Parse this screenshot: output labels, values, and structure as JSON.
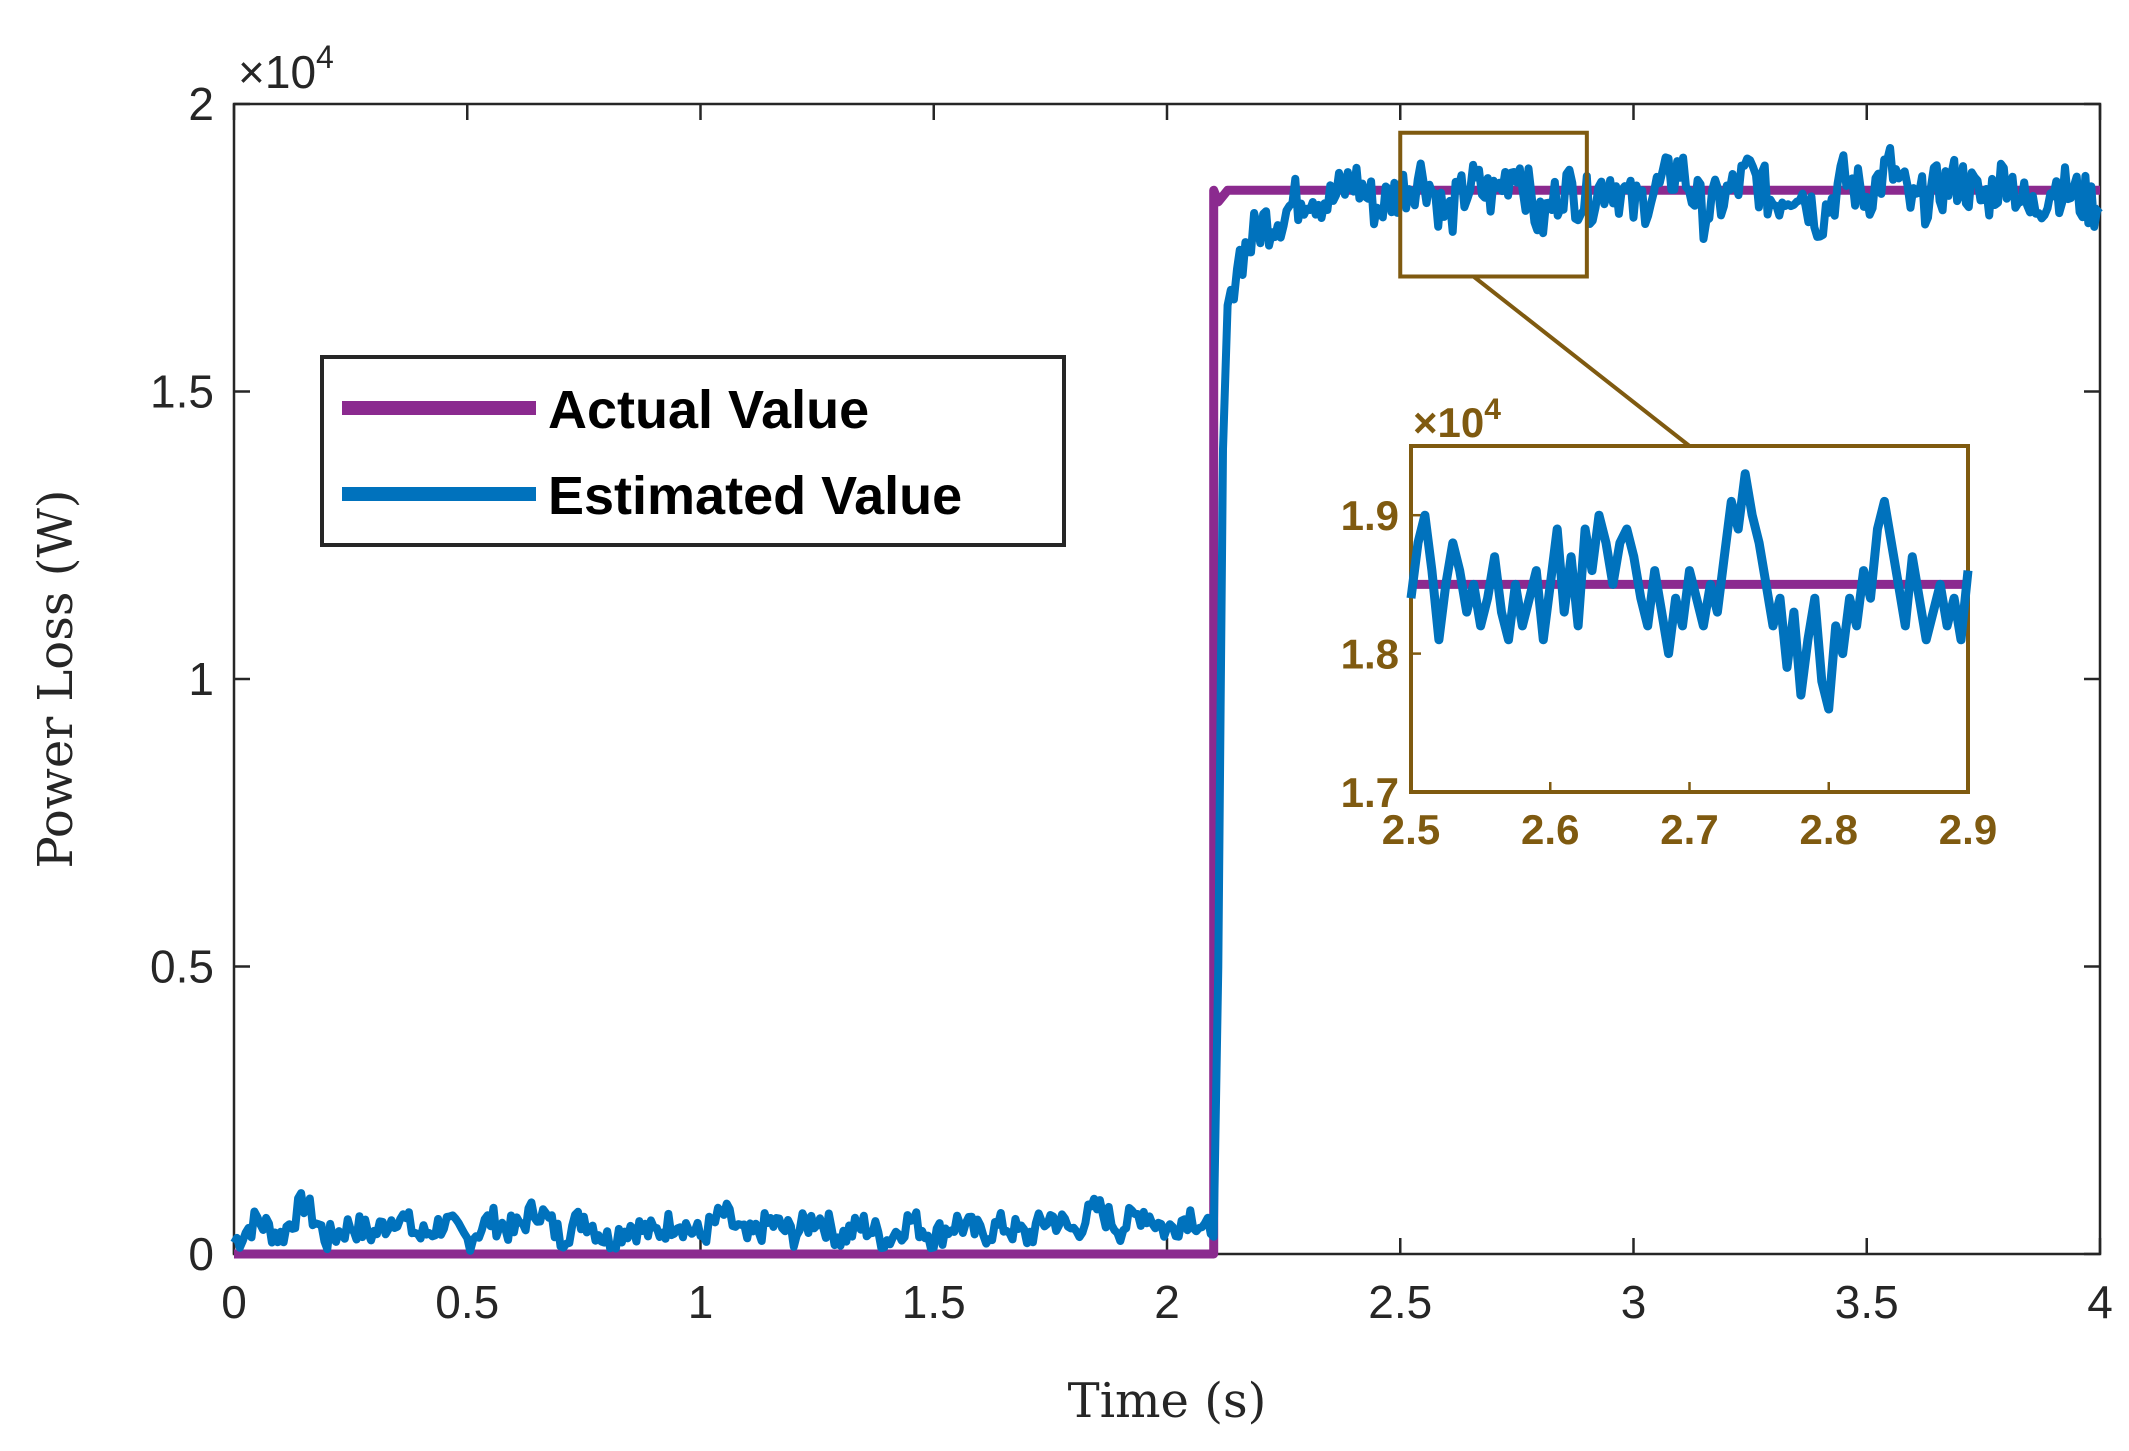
{
  "colors": {
    "actual": "#8B2A8F",
    "estimated": "#0072BD",
    "zoom": "#7F5A10",
    "axis": "#262626"
  },
  "chart_data": [
    {
      "type": "line",
      "title": "",
      "xlabel": "Time (s)",
      "ylabel": "Power Loss (W)",
      "xlim": [
        0,
        4
      ],
      "ylim": [
        0,
        20000
      ],
      "x_ticks": [
        0,
        0.5,
        1,
        1.5,
        2,
        2.5,
        3,
        3.5,
        4
      ],
      "x_tick_labels": [
        "0",
        "0.5",
        "1",
        "1.5",
        "2",
        "2.5",
        "3",
        "3.5",
        "4"
      ],
      "y_ticks": [
        0,
        5000,
        10000,
        15000,
        20000
      ],
      "y_tick_labels": [
        "0",
        "0.5",
        "1",
        "1.5",
        "2"
      ],
      "y_exponent_label": "×10",
      "y_exponent_power": "4",
      "grid": false,
      "legend": {
        "position": "upper-left",
        "entries": [
          "Actual Value",
          "Estimated Value"
        ]
      },
      "series": [
        {
          "name": "Actual Value",
          "x": [
            0,
            2.1,
            2.1,
            2.11,
            2.13,
            4
          ],
          "values": [
            0,
            0,
            18500,
            18300,
            18500,
            18500
          ]
        },
        {
          "name": "Estimated Value",
          "description_of_shape": "noisy estimate tracking actual value",
          "x": [
            0,
            0.05,
            0.1,
            0.15,
            0.2,
            0.25,
            0.3,
            0.35,
            0.4,
            0.45,
            0.5,
            0.55,
            0.6,
            0.65,
            0.7,
            0.75,
            0.8,
            0.85,
            0.9,
            0.95,
            1.0,
            1.05,
            1.1,
            1.15,
            1.2,
            1.25,
            1.3,
            1.35,
            1.4,
            1.45,
            1.5,
            1.55,
            1.6,
            1.65,
            1.7,
            1.75,
            1.8,
            1.85,
            1.9,
            1.95,
            2.0,
            2.05,
            2.1,
            2.11,
            2.12,
            2.13,
            2.15,
            2.18,
            2.2,
            2.25,
            2.3,
            2.35,
            2.4,
            2.45,
            2.5,
            2.55,
            2.6,
            2.65,
            2.7,
            2.75,
            2.8,
            2.85,
            2.9,
            2.95,
            3.0,
            3.05,
            3.1,
            3.15,
            3.2,
            3.25,
            3.3,
            3.35,
            3.4,
            3.45,
            3.5,
            3.55,
            3.6,
            3.65,
            3.7,
            3.75,
            3.8,
            3.85,
            3.9,
            3.95,
            4.0
          ],
          "values": [
            200,
            600,
            300,
            900,
            250,
            500,
            350,
            700,
            300,
            550,
            250,
            600,
            400,
            800,
            300,
            650,
            250,
            500,
            350,
            600,
            300,
            700,
            250,
            550,
            350,
            650,
            300,
            500,
            250,
            600,
            300,
            550,
            350,
            500,
            300,
            650,
            400,
            800,
            450,
            750,
            400,
            700,
            300,
            5000,
            14000,
            16500,
            17300,
            17600,
            17900,
            18100,
            18500,
            18300,
            18700,
            18200,
            18500,
            18800,
            18000,
            18600,
            18400,
            19000,
            17900,
            18600,
            18300,
            18700,
            18200,
            18500,
            18900,
            18100,
            18400,
            18800,
            18300,
            18600,
            18000,
            18700,
            18400,
            18900,
            18200,
            18500,
            18700,
            18300,
            18800,
            18100,
            18600,
            18400,
            18200
          ]
        }
      ]
    },
    {
      "type": "line",
      "role": "zoom-inset",
      "title": "",
      "xlim": [
        2.5,
        2.9
      ],
      "ylim": [
        17000,
        19500
      ],
      "x_ticks": [
        2.5,
        2.6,
        2.7,
        2.8,
        2.9
      ],
      "x_tick_labels": [
        "2.5",
        "2.6",
        "2.7",
        "2.8",
        "2.9"
      ],
      "y_ticks": [
        17000,
        18000,
        19000
      ],
      "y_tick_labels": [
        "1.7",
        "1.8",
        "1.9"
      ],
      "y_exponent_label": "×10",
      "y_exponent_power": "4",
      "zoom_region": {
        "x": [
          2.5,
          2.9
        ],
        "y": [
          17000,
          19500
        ]
      },
      "series": [
        {
          "name": "Actual Value",
          "x": [
            2.5,
            2.9
          ],
          "values": [
            18500,
            18500
          ]
        },
        {
          "name": "Estimated Value",
          "x": [
            2.5,
            2.505,
            2.51,
            2.515,
            2.52,
            2.525,
            2.53,
            2.535,
            2.54,
            2.545,
            2.55,
            2.555,
            2.56,
            2.565,
            2.57,
            2.575,
            2.58,
            2.585,
            2.59,
            2.595,
            2.6,
            2.605,
            2.61,
            2.615,
            2.62,
            2.625,
            2.63,
            2.635,
            2.64,
            2.645,
            2.65,
            2.655,
            2.66,
            2.665,
            2.67,
            2.675,
            2.68,
            2.685,
            2.69,
            2.695,
            2.7,
            2.705,
            2.71,
            2.715,
            2.72,
            2.725,
            2.73,
            2.735,
            2.74,
            2.745,
            2.75,
            2.755,
            2.76,
            2.765,
            2.77,
            2.775,
            2.78,
            2.785,
            2.79,
            2.795,
            2.8,
            2.805,
            2.81,
            2.815,
            2.82,
            2.825,
            2.83,
            2.835,
            2.84,
            2.845,
            2.85,
            2.855,
            2.86,
            2.865,
            2.87,
            2.875,
            2.88,
            2.885,
            2.89,
            2.895,
            2.9
          ],
          "values": [
            18400,
            18800,
            19000,
            18600,
            18100,
            18500,
            18800,
            18600,
            18300,
            18500,
            18200,
            18400,
            18700,
            18300,
            18100,
            18500,
            18200,
            18400,
            18600,
            18100,
            18500,
            18900,
            18300,
            18700,
            18200,
            18900,
            18600,
            19000,
            18800,
            18500,
            18800,
            18900,
            18700,
            18400,
            18200,
            18600,
            18300,
            18000,
            18400,
            18200,
            18600,
            18400,
            18200,
            18500,
            18300,
            18700,
            19100,
            18900,
            19300,
            19000,
            18800,
            18500,
            18200,
            18400,
            17900,
            18300,
            17700,
            18100,
            18400,
            17800,
            17600,
            18200,
            18000,
            18400,
            18200,
            18600,
            18400,
            18900,
            19100,
            18800,
            18500,
            18200,
            18700,
            18400,
            18100,
            18300,
            18500,
            18200,
            18400,
            18100,
            18600
          ]
        }
      ]
    }
  ]
}
